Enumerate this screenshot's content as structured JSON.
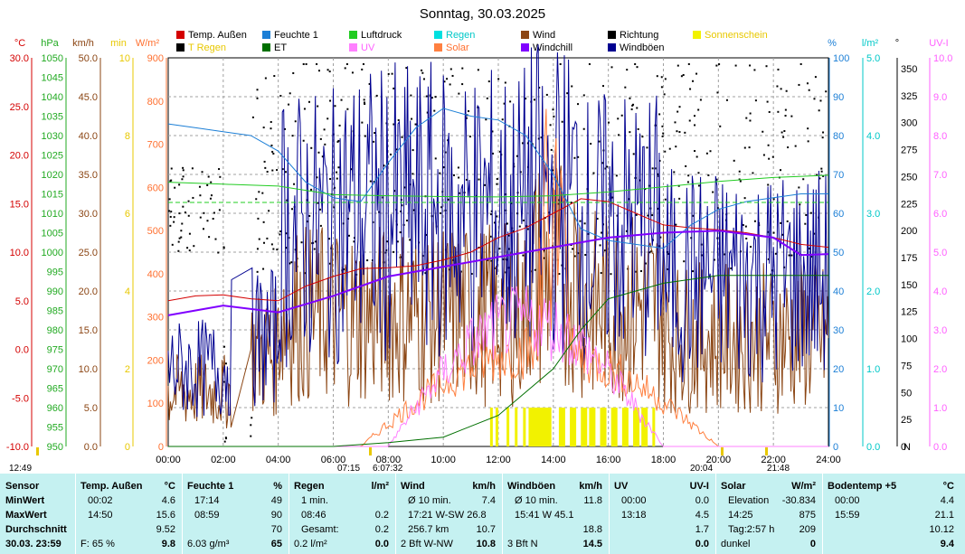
{
  "title": "Sonntag, 30.03.2025",
  "legend": [
    {
      "label": "Temp. Außen",
      "color": "#d40000"
    },
    {
      "label": "Feuchte 1",
      "color": "#1c7fd6"
    },
    {
      "label": "Luftdruck",
      "color": "#22cc22"
    },
    {
      "label": "Regen",
      "color": "#00e0e0"
    },
    {
      "label": "Wind",
      "color": "#8b4513"
    },
    {
      "label": "Richtung",
      "color": "#000000"
    },
    {
      "label": "Sonnenschein",
      "color": "#f2f200"
    },
    {
      "label": "T Regen",
      "color": "#000000"
    },
    {
      "label": "ET",
      "color": "#007000"
    },
    {
      "label": "UV",
      "color": "#ff80ff"
    },
    {
      "label": "Solar",
      "color": "#ff8040"
    },
    {
      "label": "Windchill",
      "color": "#8000ff"
    },
    {
      "label": "Windböen",
      "color": "#000090"
    }
  ],
  "axis_units": {
    "temp": "°C",
    "press": "hPa",
    "wind": "km/h",
    "min": "min",
    "solar": "W/m²",
    "hum": "%",
    "rain": "l/m²",
    "dir": "°",
    "uv": "UV-I"
  },
  "chart_data": {
    "type": "line",
    "title": "Sonntag, 30.03.2025",
    "x_ticks": [
      "00:00",
      "02:00",
      "04:00",
      "06:00",
      "08:00",
      "10:00",
      "12:00",
      "14:00",
      "16:00",
      "18:00",
      "20:00",
      "22:00",
      "24:00"
    ],
    "axes": {
      "temp_c": {
        "ylim": [
          -10,
          30
        ],
        "ticks": [
          "30.0",
          "25.0",
          "20.0",
          "15.0",
          "10.0",
          "5.0",
          "0.0",
          "-5.0",
          "-10.0"
        ]
      },
      "pressure_hpa": {
        "ylim": [
          950,
          1050
        ],
        "ticks": [
          "1050",
          "1045",
          "1040",
          "1035",
          "1030",
          "1025",
          "1020",
          "1015",
          "1010",
          "1005",
          "1000",
          "995",
          "990",
          "985",
          "980",
          "975",
          "970",
          "965",
          "960",
          "955",
          "950"
        ]
      },
      "wind_kmh": {
        "ylim": [
          0,
          50
        ],
        "ticks": [
          "50.0",
          "45.0",
          "40.0",
          "35.0",
          "30.0",
          "25.0",
          "20.0",
          "15.0",
          "10.0",
          "5.0",
          "0.0"
        ]
      },
      "sun_min": {
        "ylim": [
          0,
          10
        ],
        "ticks": [
          "10",
          "8",
          "6",
          "4",
          "2",
          "0"
        ]
      },
      "solar_wm2": {
        "ylim": [
          0,
          900
        ],
        "ticks": [
          "900",
          "800",
          "700",
          "600",
          "500",
          "400",
          "300",
          "200",
          "100",
          "0"
        ]
      },
      "humidity_pct": {
        "ylim": [
          0,
          100
        ],
        "ticks": [
          "100",
          "90",
          "80",
          "70",
          "60",
          "50",
          "40",
          "30",
          "20",
          "10",
          "0"
        ]
      },
      "rain_lm2": {
        "ylim": [
          0,
          5
        ],
        "ticks": [
          "5.0",
          "4.0",
          "3.0",
          "2.0",
          "1.0",
          "0.0"
        ]
      },
      "direction_deg": {
        "ylim": [
          0,
          360
        ],
        "ticks": [
          "350",
          "325",
          "300",
          "275",
          "250",
          "225",
          "200",
          "175",
          "150",
          "125",
          "100",
          "75",
          "50",
          "25",
          "0"
        ],
        "bottom_label": "N"
      },
      "uv_index": {
        "ylim": [
          0,
          10
        ],
        "ticks": [
          "10.0",
          "9.0",
          "8.0",
          "7.0",
          "6.0",
          "5.0",
          "4.0",
          "3.0",
          "2.0",
          "1.0",
          "0.0"
        ]
      }
    },
    "series": [
      {
        "name": "Temp. Außen",
        "axis": "temp_c",
        "x": [
          0,
          1,
          2,
          3,
          4,
          5,
          6,
          7,
          8,
          9,
          10,
          11,
          12,
          13,
          14,
          15,
          16,
          17,
          18,
          19,
          20,
          21,
          22,
          23,
          24
        ],
        "y": [
          5,
          5.5,
          5.6,
          5.2,
          5.0,
          6.5,
          7.5,
          8.3,
          8.4,
          8.6,
          9.2,
          10,
          11.5,
          12.5,
          14,
          15.5,
          15.2,
          14,
          12.8,
          12.5,
          12.3,
          12,
          11.5,
          10.8,
          10.5
        ]
      },
      {
        "name": "Feuchte 1",
        "axis": "humidity_pct",
        "x": [
          0,
          1,
          2,
          3,
          4,
          5,
          6,
          7,
          8,
          9,
          10,
          11,
          12,
          13,
          14,
          15,
          16,
          17,
          18,
          19,
          20,
          21,
          22,
          23,
          24
        ],
        "y": [
          83,
          82,
          81,
          80,
          76,
          68,
          64,
          63,
          73,
          82,
          87,
          85,
          84,
          80,
          70,
          56,
          53,
          52,
          51,
          57,
          61,
          63,
          64,
          65,
          65
        ]
      },
      {
        "name": "Luftdruck",
        "axis": "pressure_hpa",
        "x": [
          0,
          2,
          4,
          6,
          8,
          10,
          12,
          14,
          16,
          18,
          20,
          22,
          24
        ],
        "y": [
          1018.0,
          1017.5,
          1017.0,
          1014.8,
          1014.5,
          1014.3,
          1014.2,
          1014.5,
          1015.5,
          1016.8,
          1018.2,
          1019.2,
          1019.8
        ]
      },
      {
        "name": "ET",
        "axis": "rain_lm2",
        "x": [
          0,
          6,
          8,
          10,
          12,
          14,
          15,
          16,
          17,
          18,
          20,
          22,
          24
        ],
        "y": [
          0,
          0,
          0.05,
          0.12,
          0.4,
          1.0,
          1.5,
          1.9,
          2.0,
          2.1,
          2.2,
          2.2,
          2.2
        ]
      },
      {
        "name": "Windchill",
        "axis": "temp_c",
        "x": [
          0,
          1,
          2,
          4,
          6,
          8,
          10,
          12,
          14,
          16,
          18,
          20,
          22,
          23,
          24
        ],
        "y": [
          3.5,
          4.0,
          4.5,
          3.8,
          5.5,
          7.5,
          8.5,
          9.5,
          10.5,
          11.5,
          12,
          12.2,
          11.5,
          9.7,
          9.8
        ]
      }
    ],
    "sunshine_bars_h": [
      11.7,
      11.9,
      12.3,
      12.6,
      12.9,
      13.1,
      13.3,
      13.5,
      13.7,
      14.2,
      14.6,
      15.0,
      15.3,
      15.7,
      16.1,
      16.5,
      16.9,
      17.2,
      17.6
    ],
    "time_marks": {
      "top_left": "12:49",
      "sunrise": "07:15",
      "civil_dawn": "6:07:32",
      "sunset": "20:04",
      "dusk": "21:48"
    }
  },
  "summary": {
    "row_labels": [
      "Sensor",
      "MinWert",
      "MaxWert",
      "Durchschnitt",
      "30.03. 23:59"
    ],
    "cols": [
      {
        "title": "Temp. Außen",
        "unit": "°C",
        "rows": [
          [
            "00:02",
            "4.6"
          ],
          [
            "14:50",
            "15.6"
          ],
          [
            "",
            "9.52"
          ]
        ],
        "footer_left": "F: 65 %",
        "footer_val": "9.8"
      },
      {
        "title": "Feuchte 1",
        "unit": "%",
        "rows": [
          [
            "17:14",
            "49"
          ],
          [
            "08:59",
            "90"
          ],
          [
            "",
            "70"
          ]
        ],
        "footer_left": "6.03 g/m³",
        "footer_val": "65"
      },
      {
        "title": "Regen",
        "unit": "l/m²",
        "rows": [
          [
            "1 min.",
            ""
          ],
          [
            "08:46",
            "0.2"
          ],
          [
            "Gesamt:",
            "0.2"
          ]
        ],
        "footer_left": "0.2 l/m²",
        "footer_val": "0.0"
      },
      {
        "title": "Wind",
        "unit": "km/h",
        "rows": [
          [
            "Ø 10 min.",
            "7.4"
          ],
          [
            "17:21   W-SW 26.8",
            ""
          ],
          [
            "256.7 km",
            "10.7"
          ]
        ],
        "footer_left": "2 Bft W-NW",
        "footer_val": "10.8"
      },
      {
        "title": "Windböen",
        "unit": "km/h",
        "rows": [
          [
            "Ø 10 min.",
            "11.8"
          ],
          [
            "15:41       W 45.1",
            ""
          ],
          [
            "",
            "18.8"
          ]
        ],
        "footer_left": "3 Bft N",
        "footer_val": "14.5"
      },
      {
        "title": "UV",
        "unit": "UV-I",
        "rows": [
          [
            "00:00",
            "0.0"
          ],
          [
            "13:18",
            "4.5"
          ],
          [
            "",
            "1.7"
          ]
        ],
        "footer_left": "",
        "footer_val": "0.0"
      },
      {
        "title": "Solar",
        "unit": "W/m²",
        "rows": [
          [
            "Elevation",
            "-30.834"
          ],
          [
            "14:25",
            "875"
          ],
          [
            "Tag:2:57 h",
            "209"
          ]
        ],
        "footer_left": "dunkel",
        "footer_val": "0"
      },
      {
        "title": "Bodentemp +5",
        "unit": "°C",
        "rows": [
          [
            "00:00",
            "4.4"
          ],
          [
            "15:59",
            "21.1"
          ],
          [
            "",
            "10.12"
          ]
        ],
        "footer_left": "",
        "footer_val": "9.4"
      }
    ]
  }
}
